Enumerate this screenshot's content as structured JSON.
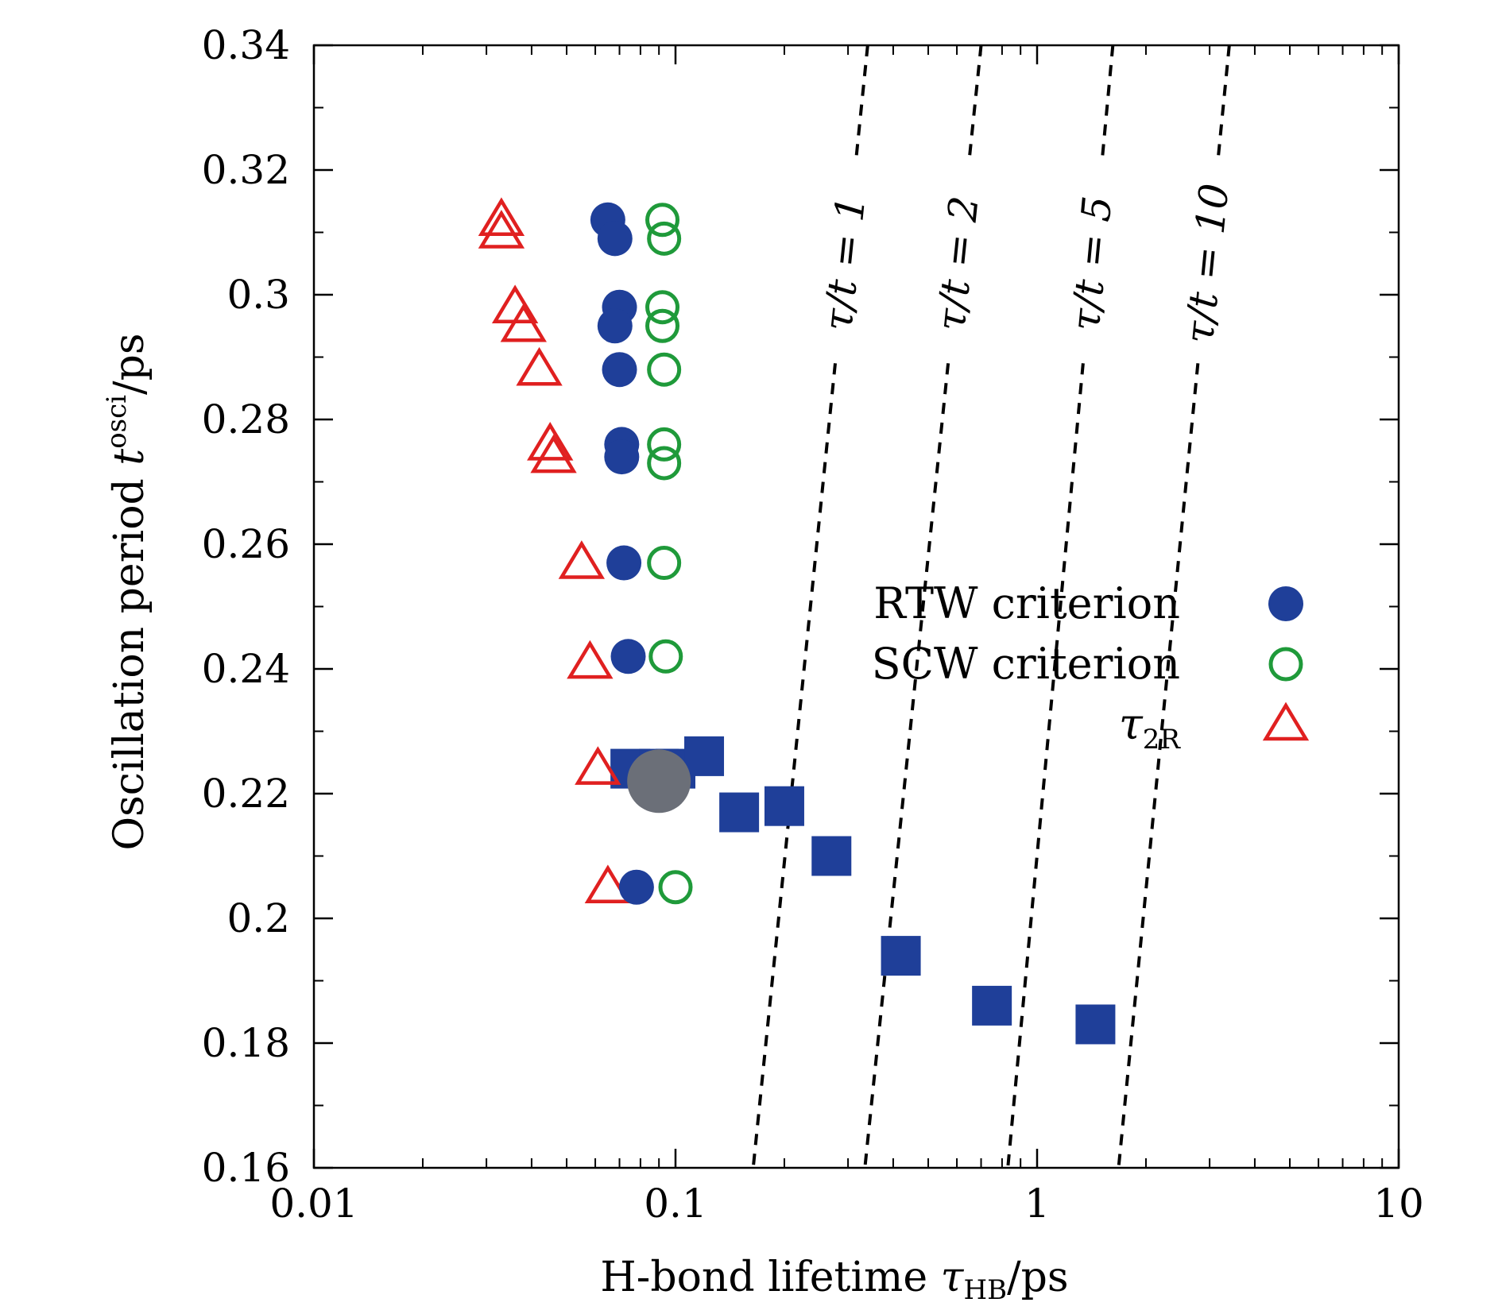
{
  "chart_data": {
    "type": "scatter",
    "title": "",
    "xlabel": {
      "prefix": "H-bond lifetime ",
      "symbol": "τ",
      "sub": "HB",
      "suffix": "/ps"
    },
    "ylabel": {
      "prefix": "Oscillation period ",
      "symbol": "t",
      "sup": "osci",
      "suffix": "/ps"
    },
    "x_scale": "log",
    "xlim": [
      0.01,
      10
    ],
    "ylim": [
      0.16,
      0.34
    ],
    "x_ticks": [
      {
        "value": 0.01,
        "label": "0.01"
      },
      {
        "value": 0.1,
        "label": "0.1"
      },
      {
        "value": 1,
        "label": "1"
      },
      {
        "value": 10,
        "label": "10"
      }
    ],
    "y_ticks": [
      {
        "value": 0.16,
        "label": "0.16"
      },
      {
        "value": 0.18,
        "label": "0.18"
      },
      {
        "value": 0.2,
        "label": "0.2"
      },
      {
        "value": 0.22,
        "label": "0.22"
      },
      {
        "value": 0.24,
        "label": "0.24"
      },
      {
        "value": 0.26,
        "label": "0.26"
      },
      {
        "value": 0.28,
        "label": "0.28"
      },
      {
        "value": 0.3,
        "label": "0.3"
      },
      {
        "value": 0.32,
        "label": "0.32"
      },
      {
        "value": 0.34,
        "label": "0.34"
      }
    ],
    "grid": false,
    "legend_position": "right",
    "colors": {
      "blue": "#1f3f99",
      "green": "#1f9a3a",
      "red": "#e02020",
      "gray": "#6b6f78"
    },
    "series": [
      {
        "name": "RTW criterion",
        "marker": "filled-circle",
        "color": "#1f3f99",
        "points": [
          [
            0.065,
            0.312
          ],
          [
            0.068,
            0.309
          ],
          [
            0.07,
            0.298
          ],
          [
            0.068,
            0.295
          ],
          [
            0.07,
            0.288
          ],
          [
            0.071,
            0.276
          ],
          [
            0.071,
            0.274
          ],
          [
            0.072,
            0.257
          ],
          [
            0.074,
            0.242
          ],
          [
            0.078,
            0.205
          ]
        ]
      },
      {
        "name": "SCW criterion",
        "marker": "open-circle",
        "color": "#1f9a3a",
        "points": [
          [
            0.092,
            0.312
          ],
          [
            0.093,
            0.309
          ],
          [
            0.092,
            0.298
          ],
          [
            0.092,
            0.295
          ],
          [
            0.093,
            0.288
          ],
          [
            0.093,
            0.276
          ],
          [
            0.093,
            0.273
          ],
          [
            0.093,
            0.257
          ],
          [
            0.094,
            0.242
          ],
          [
            0.1,
            0.205
          ]
        ]
      },
      {
        "name": "",
        "legend_symbol": "τ",
        "legend_sub": "2R",
        "marker": "open-triangle",
        "color": "#e02020",
        "points": [
          [
            0.033,
            0.312
          ],
          [
            0.033,
            0.31
          ],
          [
            0.036,
            0.298
          ],
          [
            0.038,
            0.295
          ],
          [
            0.042,
            0.288
          ],
          [
            0.045,
            0.276
          ],
          [
            0.046,
            0.274
          ],
          [
            0.055,
            0.257
          ],
          [
            0.058,
            0.241
          ],
          [
            0.061,
            0.224
          ],
          [
            0.065,
            0.205
          ]
        ]
      },
      {
        "name": "",
        "marker": "filled-square",
        "color": "#1f3f99",
        "points": [
          [
            0.075,
            0.224
          ],
          [
            0.09,
            0.224
          ],
          [
            0.1,
            0.224
          ],
          [
            0.12,
            0.226
          ],
          [
            0.15,
            0.217
          ],
          [
            0.2,
            0.218
          ],
          [
            0.27,
            0.21
          ],
          [
            0.42,
            0.194
          ],
          [
            0.75,
            0.186
          ],
          [
            1.45,
            0.183
          ]
        ]
      },
      {
        "name": "",
        "marker": "large-gray-circle",
        "color": "#6b6f78",
        "points": [
          [
            0.09,
            0.222
          ]
        ]
      }
    ],
    "ratio_lines": [
      {
        "label": "τ/t = 1",
        "top_x": 0.34,
        "bottom_x": 0.164,
        "label_x": 0.22,
        "label_y": 0.305
      },
      {
        "label": "τ/t = 2",
        "top_x": 0.7,
        "bottom_x": 0.334,
        "label_x": 0.46,
        "label_y": 0.305
      },
      {
        "label": "τ/t = 5",
        "top_x": 1.62,
        "bottom_x": 0.83,
        "label_x": 1.12,
        "label_y": 0.305
      },
      {
        "label": "τ/t = 10",
        "top_x": 3.4,
        "bottom_x": 1.68,
        "label_x": 2.45,
        "label_y": 0.305
      }
    ],
    "legend_entries": [
      {
        "text": "RTW criterion",
        "marker": "filled-circle",
        "color": "#1f3f99"
      },
      {
        "text": "SCW criterion",
        "marker": "open-circle",
        "color": "#1f9a3a"
      },
      {
        "text_symbol": "τ",
        "text_sub": "2R",
        "marker": "open-triangle",
        "color": "#e02020"
      }
    ]
  }
}
